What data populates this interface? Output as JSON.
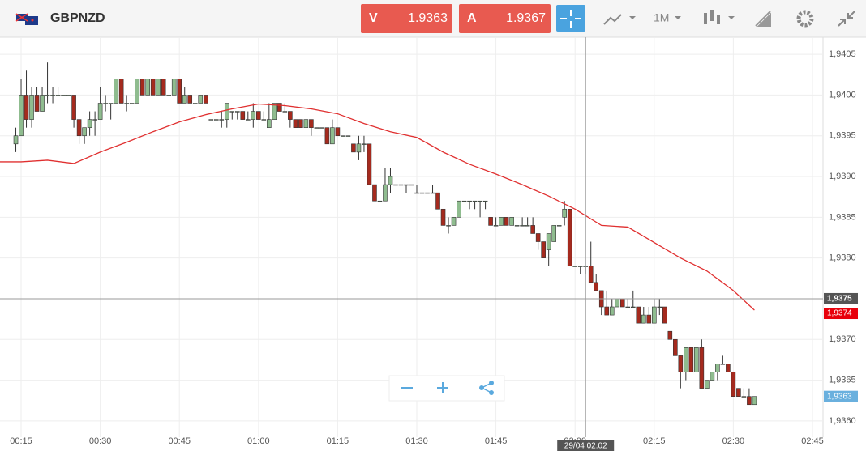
{
  "header": {
    "symbol": "GBPNZD",
    "sell_label": "V",
    "sell_price": "1.9363",
    "buy_label": "A",
    "buy_price": "1.9367",
    "timeframe": "1M"
  },
  "chart_data": {
    "type": "candlestick",
    "up_color": "#8fbc8f",
    "down_color": "#a52a1e",
    "grid": true,
    "xlim": [
      "00:11",
      "02:47"
    ],
    "ylim": [
      1.9358,
      1.94071
    ],
    "xticks": [
      "00:15",
      "00:30",
      "00:45",
      "01:00",
      "01:15",
      "01:30",
      "01:45",
      "02:00",
      "02:15",
      "02:30",
      "02:45"
    ],
    "yticks": [
      {
        "value": 1.936,
        "label": "1,9360"
      },
      {
        "value": 1.9365,
        "label": "1,9365"
      },
      {
        "value": 1.937,
        "label": "1,9370"
      },
      {
        "value": 1.9375,
        "label": "1,9375"
      },
      {
        "value": 1.938,
        "label": "1,9380"
      },
      {
        "value": 1.9385,
        "label": "1,9385"
      },
      {
        "value": 1.939,
        "label": "1,9390"
      },
      {
        "value": 1.9395,
        "label": "1,9395"
      },
      {
        "value": 1.94,
        "label": "1,9400"
      },
      {
        "value": 1.9405,
        "label": "1,9405"
      }
    ],
    "x": [
      "00:14",
      "00:15",
      "00:16",
      "00:17",
      "00:18",
      "00:19",
      "00:20",
      "00:21",
      "00:22",
      "00:23",
      "00:24",
      "00:25",
      "00:26",
      "00:27",
      "00:28",
      "00:29",
      "00:30",
      "00:31",
      "00:32",
      "00:33",
      "00:34",
      "00:35",
      "00:36",
      "00:37",
      "00:38",
      "00:39",
      "00:40",
      "00:41",
      "00:42",
      "00:43",
      "00:44",
      "00:45",
      "00:46",
      "00:47",
      "00:48",
      "00:49",
      "00:50",
      "00:51",
      "00:52",
      "00:53",
      "00:54",
      "00:55",
      "00:56",
      "00:57",
      "00:58",
      "00:59",
      "01:00",
      "01:01",
      "01:02",
      "01:03",
      "01:04",
      "01:05",
      "01:06",
      "01:07",
      "01:08",
      "01:09",
      "01:10",
      "01:11",
      "01:12",
      "01:13",
      "01:14",
      "01:15",
      "01:16",
      "01:17",
      "01:18",
      "01:19",
      "01:20",
      "01:21",
      "01:22",
      "01:23",
      "01:24",
      "01:25",
      "01:26",
      "01:27",
      "01:28",
      "01:29",
      "01:30",
      "01:31",
      "01:32",
      "01:33",
      "01:34",
      "01:35",
      "01:36",
      "01:37",
      "01:38",
      "01:39",
      "01:40",
      "01:41",
      "01:42",
      "01:43",
      "01:44",
      "01:45",
      "01:46",
      "01:47",
      "01:48",
      "01:49",
      "01:50",
      "01:51",
      "01:52",
      "01:53",
      "01:54",
      "01:55",
      "01:56",
      "01:57",
      "01:58",
      "01:59",
      "02:00",
      "02:01",
      "02:02",
      "02:03",
      "02:04",
      "02:05",
      "02:06",
      "02:07",
      "02:08",
      "02:09",
      "02:10",
      "02:11",
      "02:12",
      "02:13",
      "02:14",
      "02:15",
      "02:16",
      "02:17",
      "02:18",
      "02:19",
      "02:20",
      "02:21",
      "02:22",
      "02:23",
      "02:24",
      "02:25",
      "02:26",
      "02:27",
      "02:28",
      "02:29",
      "02:30",
      "02:31",
      "02:32",
      "02:33",
      "02:34"
    ],
    "ohlc": [
      [
        1.9394,
        1.9396,
        1.9393,
        1.9395
      ],
      [
        1.9395,
        1.9402,
        1.9395,
        1.94
      ],
      [
        1.94,
        1.9403,
        1.9396,
        1.9397
      ],
      [
        1.9397,
        1.9401,
        1.9396,
        1.94
      ],
      [
        1.94,
        1.9401,
        1.9398,
        1.9398
      ],
      [
        1.9398,
        1.9401,
        1.9398,
        1.94
      ],
      [
        1.94,
        1.9404,
        1.9399,
        1.94
      ],
      [
        1.94,
        1.9401,
        1.9399,
        1.94
      ],
      [
        1.94,
        1.9401,
        1.94,
        1.94
      ],
      [
        1.94,
        1.94,
        1.94,
        1.94
      ],
      [
        1.94,
        1.94,
        1.94,
        1.94
      ],
      [
        1.94,
        1.94,
        1.9396,
        1.9397
      ],
      [
        1.9397,
        1.9397,
        1.9394,
        1.9395
      ],
      [
        1.9395,
        1.9396,
        1.9394,
        1.9396
      ],
      [
        1.9396,
        1.9398,
        1.9395,
        1.9397
      ],
      [
        1.9397,
        1.9398,
        1.9395,
        1.9397
      ],
      [
        1.9397,
        1.9401,
        1.9397,
        1.9399
      ],
      [
        1.9399,
        1.94,
        1.9398,
        1.9399
      ],
      [
        1.9399,
        1.9399,
        1.9397,
        1.9399
      ],
      [
        1.9399,
        1.9402,
        1.9399,
        1.9402
      ],
      [
        1.9402,
        1.9402,
        1.9399,
        1.9399
      ],
      [
        1.9399,
        1.94,
        1.9398,
        1.9399
      ],
      [
        1.9399,
        1.9399,
        1.9399,
        1.9399
      ],
      [
        1.9399,
        1.9402,
        1.9399,
        1.9402
      ],
      [
        1.9402,
        1.9402,
        1.94,
        1.94
      ],
      [
        1.94,
        1.9402,
        1.94,
        1.9402
      ],
      [
        1.9402,
        1.9402,
        1.94,
        1.94
      ],
      [
        1.94,
        1.9402,
        1.94,
        1.9402
      ],
      [
        1.9402,
        1.9402,
        1.94,
        1.94
      ],
      [
        1.94,
        1.94,
        1.94,
        1.94
      ],
      [
        1.94,
        1.9402,
        1.94,
        1.9402
      ],
      [
        1.9402,
        1.9402,
        1.9399,
        1.9399
      ],
      [
        1.9399,
        1.9401,
        1.9399,
        1.94
      ],
      [
        1.94,
        1.94,
        1.9399,
        1.9399
      ],
      [
        1.9399,
        1.9399,
        1.9399,
        1.9399
      ],
      [
        1.9399,
        1.94,
        1.9399,
        1.94
      ],
      [
        1.94,
        1.94,
        1.9399,
        1.9399
      ],
      [
        1.9397,
        1.9397,
        1.9397,
        1.9397
      ],
      [
        1.9397,
        1.9397,
        1.9397,
        1.9397
      ],
      [
        1.9397,
        1.9398,
        1.9396,
        1.9397
      ],
      [
        1.9397,
        1.9399,
        1.9396,
        1.9399
      ],
      [
        1.9398,
        1.9398,
        1.9397,
        1.9398
      ],
      [
        1.9398,
        1.9398,
        1.9397,
        1.9398
      ],
      [
        1.9398,
        1.9398,
        1.9397,
        1.9397
      ],
      [
        1.9397,
        1.9398,
        1.9397,
        1.9397
      ],
      [
        1.9397,
        1.9399,
        1.9396,
        1.9398
      ],
      [
        1.9398,
        1.9398,
        1.9397,
        1.9397
      ],
      [
        1.9397,
        1.9398,
        1.9397,
        1.9397
      ],
      [
        1.9396,
        1.9399,
        1.9396,
        1.9397
      ],
      [
        1.9397,
        1.9399,
        1.9397,
        1.9399
      ],
      [
        1.9399,
        1.9399,
        1.9398,
        1.9398
      ],
      [
        1.9398,
        1.9399,
        1.9398,
        1.9398
      ],
      [
        1.9398,
        1.9398,
        1.9396,
        1.9397
      ],
      [
        1.9397,
        1.9397,
        1.9396,
        1.9396
      ],
      [
        1.9397,
        1.9397,
        1.9396,
        1.9396
      ],
      [
        1.9396,
        1.9397,
        1.9396,
        1.9397
      ],
      [
        1.9397,
        1.9397,
        1.9395,
        1.9396
      ],
      [
        1.9396,
        1.9396,
        1.9396,
        1.9396
      ],
      [
        1.9396,
        1.9396,
        1.9396,
        1.9396
      ],
      [
        1.9396,
        1.9396,
        1.9394,
        1.9394
      ],
      [
        1.9394,
        1.9397,
        1.9394,
        1.9396
      ],
      [
        1.9396,
        1.9396,
        1.9395,
        1.9395
      ],
      [
        1.9395,
        1.9395,
        1.9395,
        1.9395
      ],
      [
        1.9395,
        1.9395,
        1.9395,
        1.9395
      ],
      [
        1.9394,
        1.9394,
        1.9393,
        1.9393
      ],
      [
        1.9393,
        1.9395,
        1.9392,
        1.9394
      ],
      [
        1.9394,
        1.9395,
        1.9393,
        1.9394
      ],
      [
        1.9394,
        1.9394,
        1.9389,
        1.9389
      ],
      [
        1.9389,
        1.9389,
        1.9387,
        1.9387
      ],
      [
        1.9387,
        1.9387,
        1.9387,
        1.9387
      ],
      [
        1.9387,
        1.9391,
        1.9387,
        1.9389
      ],
      [
        1.9389,
        1.9391,
        1.9388,
        1.939
      ],
      [
        1.9389,
        1.9389,
        1.9389,
        1.9389
      ],
      [
        1.9389,
        1.9389,
        1.9389,
        1.9389
      ],
      [
        1.9389,
        1.9389,
        1.9388,
        1.9389
      ],
      [
        1.9389,
        1.9389,
        1.9389,
        1.9389
      ],
      [
        1.9388,
        1.9389,
        1.9388,
        1.9388
      ],
      [
        1.9388,
        1.9388,
        1.9388,
        1.9388
      ],
      [
        1.9388,
        1.9388,
        1.9388,
        1.9388
      ],
      [
        1.9388,
        1.9389,
        1.9388,
        1.9388
      ],
      [
        1.9388,
        1.9388,
        1.9386,
        1.9386
      ],
      [
        1.9386,
        1.9386,
        1.9384,
        1.9384
      ],
      [
        1.9384,
        1.9385,
        1.9383,
        1.9384
      ],
      [
        1.9384,
        1.9385,
        1.9384,
        1.9385
      ],
      [
        1.9385,
        1.9387,
        1.9385,
        1.9387
      ],
      [
        1.9387,
        1.9387,
        1.9387,
        1.9387
      ],
      [
        1.9387,
        1.9387,
        1.9386,
        1.9387
      ],
      [
        1.9387,
        1.9387,
        1.9386,
        1.9387
      ],
      [
        1.9387,
        1.9387,
        1.9385,
        1.9387
      ],
      [
        1.9387,
        1.9387,
        1.9386,
        1.9387
      ],
      [
        1.9385,
        1.9385,
        1.9384,
        1.9384
      ],
      [
        1.9384,
        1.9385,
        1.9384,
        1.9384
      ],
      [
        1.9384,
        1.9385,
        1.9384,
        1.9385
      ],
      [
        1.9385,
        1.9385,
        1.9384,
        1.9384
      ],
      [
        1.9384,
        1.9385,
        1.9384,
        1.9385
      ],
      [
        1.9384,
        1.9384,
        1.9384,
        1.9384
      ],
      [
        1.9384,
        1.9385,
        1.9384,
        1.9384
      ],
      [
        1.9384,
        1.9385,
        1.9384,
        1.9384
      ],
      [
        1.9384,
        1.9385,
        1.9383,
        1.9383
      ],
      [
        1.9383,
        1.9383,
        1.9381,
        1.9382
      ],
      [
        1.9382,
        1.9382,
        1.938,
        1.938
      ],
      [
        1.9381,
        1.9383,
        1.9379,
        1.9383
      ],
      [
        1.9382,
        1.9384,
        1.9382,
        1.9384
      ],
      [
        1.9384,
        1.9384,
        1.9384,
        1.9384
      ],
      [
        1.9385,
        1.9387,
        1.9384,
        1.9386
      ],
      [
        1.9386,
        1.9386,
        1.9379,
        1.9379
      ],
      [
        1.9379,
        1.9379,
        1.9379,
        1.9379
      ],
      [
        1.9379,
        1.9379,
        1.9378,
        1.9379
      ],
      [
        1.9379,
        1.9379,
        1.9378,
        1.9379
      ],
      [
        1.9379,
        1.9382,
        1.9377,
        1.9377
      ],
      [
        1.9377,
        1.9378,
        1.9376,
        1.9376
      ],
      [
        1.9376,
        1.9376,
        1.9373,
        1.9374
      ],
      [
        1.9374,
        1.9376,
        1.9373,
        1.9373
      ],
      [
        1.9373,
        1.9375,
        1.9373,
        1.9374
      ],
      [
        1.9374,
        1.9375,
        1.9374,
        1.9375
      ],
      [
        1.9375,
        1.9375,
        1.9374,
        1.9374
      ],
      [
        1.9374,
        1.9375,
        1.9374,
        1.9374
      ],
      [
        1.9374,
        1.9376,
        1.9374,
        1.9374
      ],
      [
        1.9374,
        1.9374,
        1.9372,
        1.9372
      ],
      [
        1.9372,
        1.9374,
        1.9372,
        1.9373
      ],
      [
        1.9373,
        1.9374,
        1.9372,
        1.9372
      ],
      [
        1.9372,
        1.9375,
        1.9372,
        1.9374
      ],
      [
        1.9374,
        1.9375,
        1.9373,
        1.9374
      ],
      [
        1.9374,
        1.9374,
        1.9372,
        1.9372
      ],
      [
        1.9371,
        1.9371,
        1.937,
        1.937
      ],
      [
        1.937,
        1.937,
        1.9368,
        1.9368
      ],
      [
        1.9368,
        1.9368,
        1.9364,
        1.9366
      ],
      [
        1.9366,
        1.9369,
        1.9365,
        1.9369
      ],
      [
        1.9369,
        1.9369,
        1.9366,
        1.9366
      ],
      [
        1.9366,
        1.9369,
        1.9366,
        1.9369
      ],
      [
        1.9369,
        1.937,
        1.9364,
        1.9364
      ],
      [
        1.9364,
        1.9365,
        1.9364,
        1.9365
      ],
      [
        1.9365,
        1.9366,
        1.9365,
        1.9366
      ],
      [
        1.9366,
        1.9367,
        1.9365,
        1.9367
      ],
      [
        1.9367,
        1.9368,
        1.9367,
        1.9367
      ],
      [
        1.9367,
        1.9367,
        1.9366,
        1.9366
      ],
      [
        1.9366,
        1.9366,
        1.9363,
        1.9363
      ],
      [
        1.9364,
        1.9364,
        1.9363,
        1.9363
      ],
      [
        1.9363,
        1.9364,
        1.9363,
        1.9363
      ],
      [
        1.9363,
        1.9364,
        1.9362,
        1.9362
      ],
      [
        1.9362,
        1.9363,
        1.9362,
        1.9363
      ]
    ],
    "moving_average": {
      "color": "#e03030",
      "x": [
        "00:11",
        "00:15",
        "00:20",
        "00:25",
        "00:30",
        "00:35",
        "00:40",
        "00:45",
        "00:50",
        "00:55",
        "01:00",
        "01:05",
        "01:10",
        "01:15",
        "01:20",
        "01:25",
        "01:30",
        "01:35",
        "01:40",
        "01:45",
        "01:50",
        "01:55",
        "02:00",
        "02:05",
        "02:10",
        "02:15",
        "02:20",
        "02:25",
        "02:30",
        "02:34"
      ],
      "values": [
        1.93918,
        1.93918,
        1.9392,
        1.93916,
        1.9393,
        1.93942,
        1.93955,
        1.93967,
        1.93976,
        1.93983,
        1.93989,
        1.93987,
        1.93983,
        1.93977,
        1.93965,
        1.93955,
        1.93948,
        1.9393,
        1.93915,
        1.93903,
        1.9389,
        1.93876,
        1.9386,
        1.9384,
        1.93838,
        1.93819,
        1.938,
        1.93784,
        1.9376,
        1.93736
      ]
    },
    "crosshair": {
      "x": "02:02",
      "x_label": "29/04 02:02",
      "y": 1.9375,
      "y_label": "1,9375"
    },
    "price_markers": [
      {
        "value": 1.9374,
        "label": "1,9374",
        "color": "#e8000b"
      },
      {
        "value": 1.9363,
        "label": "1,9363",
        "color": "#6ab0de"
      }
    ]
  }
}
